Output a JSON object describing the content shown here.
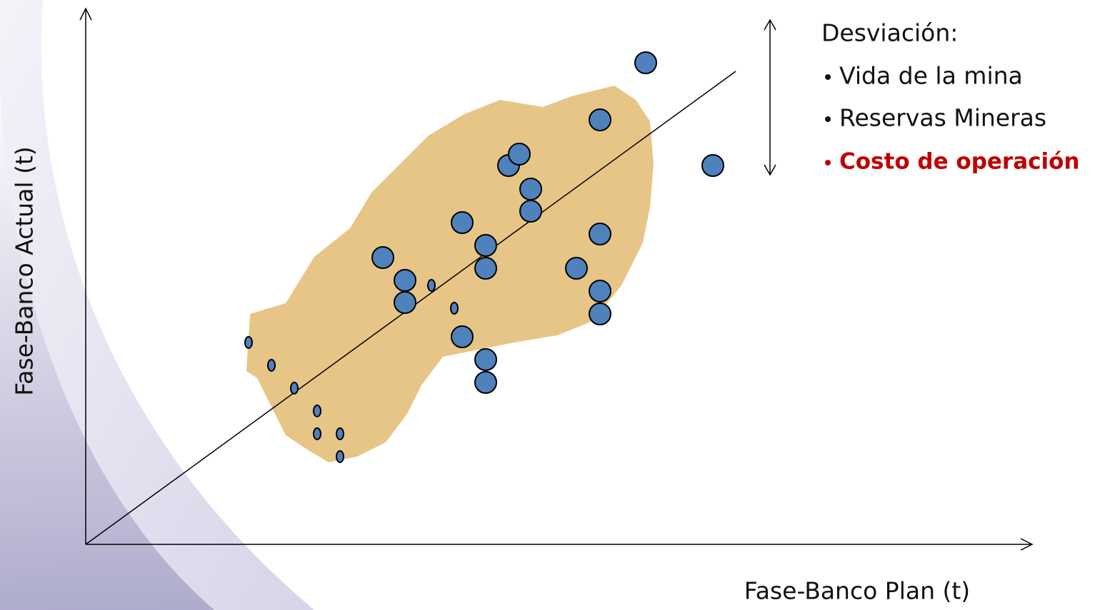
{
  "axes": {
    "x_label": "Fase-Banco Plan (t)",
    "y_label": "Fase-Banco Actual (t)"
  },
  "legend": {
    "title": "Desviación:",
    "items": [
      "Vida de la mina",
      "Reservas Mineras",
      "Costo de operación"
    ]
  }
}
